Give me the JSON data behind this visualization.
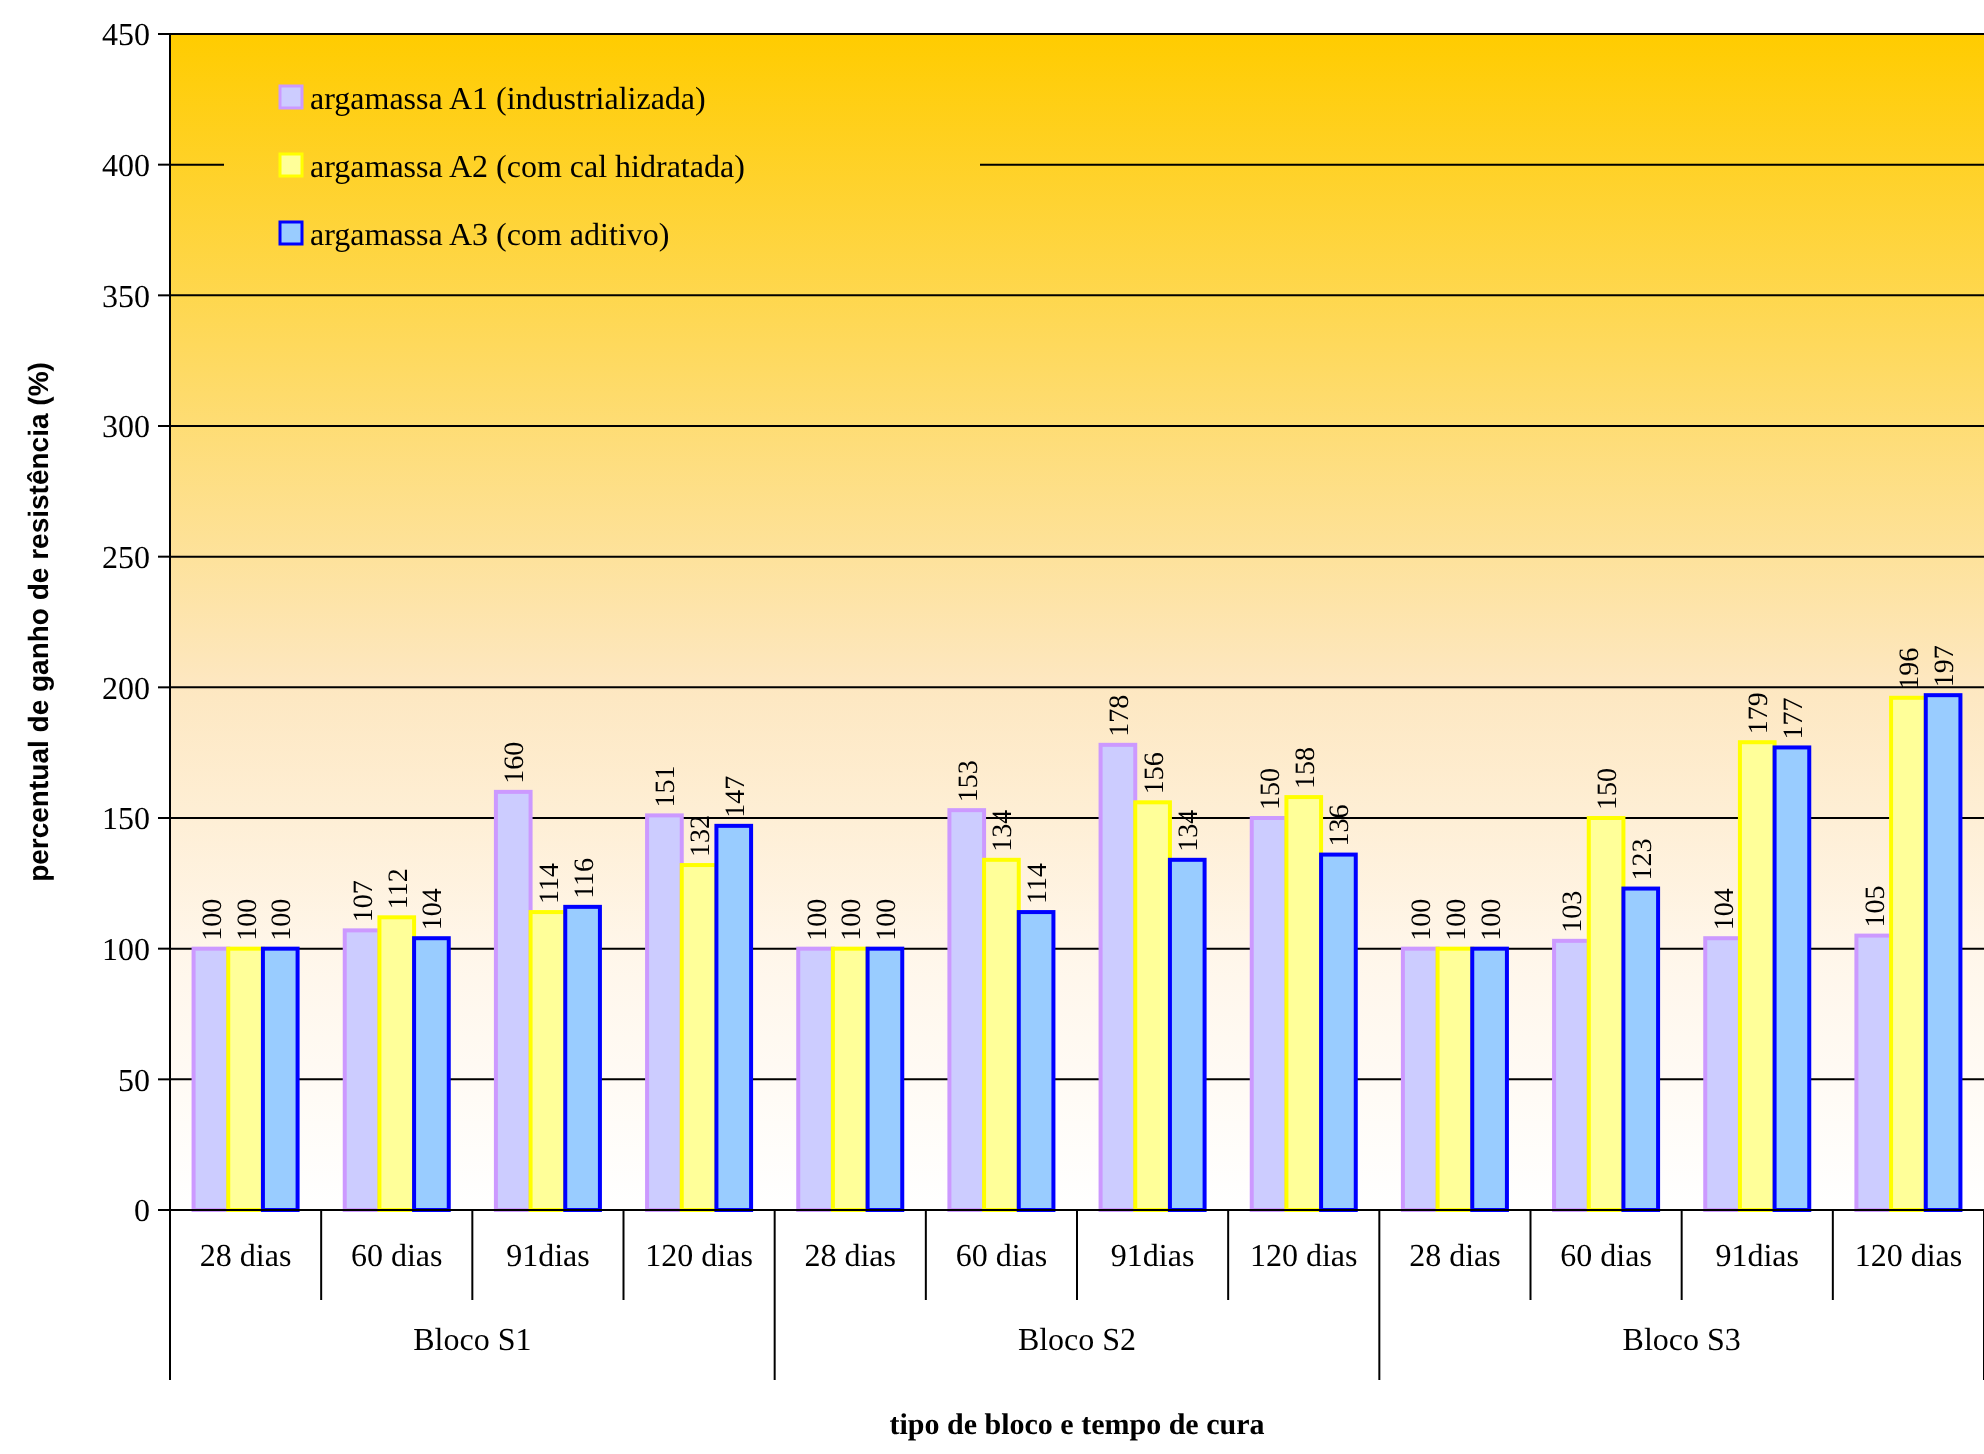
{
  "chart_data": {
    "type": "bar",
    "xlabel": "tipo de bloco e tempo de cura",
    "ylabel": "percentual de ganho de resistência (%)",
    "categories": [
      "28 dias",
      "60 dias",
      "91dias",
      "120 dias",
      "28 dias",
      "60 dias",
      "91dias",
      "120 dias",
      "28 dias",
      "60 dias",
      "91dias",
      "120 dias"
    ],
    "annotations": [
      "Bloco S1",
      "Bloco S2",
      "Bloco S3"
    ],
    "series": [
      {
        "name": "argamassa A1 (industrializada)",
        "color": "#ccccff",
        "values": [
          100,
          107,
          160,
          151,
          100,
          153,
          178,
          150,
          100,
          103,
          104,
          105
        ]
      },
      {
        "name": "argamassa A2 (com cal hidratada)",
        "color": "#ffff99",
        "values": [
          100,
          112,
          114,
          132,
          100,
          134,
          156,
          158,
          100,
          150,
          179,
          196
        ]
      },
      {
        "name": "argamassa A3 (com aditivo)",
        "color": "#99ccff",
        "values": [
          100,
          104,
          116,
          147,
          100,
          114,
          134,
          136,
          100,
          123,
          177,
          197
        ]
      }
    ],
    "ylim": [
      0,
      450
    ],
    "yticks": [
      0,
      50,
      100,
      150,
      200,
      250,
      300,
      350,
      400,
      450
    ],
    "grid": "y",
    "legend": "top left",
    "data_labels": true
  }
}
